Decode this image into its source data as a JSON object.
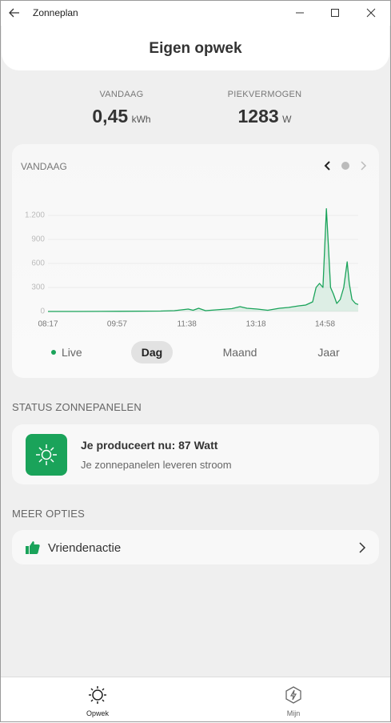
{
  "window": {
    "title": "Zonneplan"
  },
  "header": {
    "title": "Eigen opwek"
  },
  "stats": [
    {
      "label": "VANDAAG",
      "value": "0,45",
      "unit": "kWh"
    },
    {
      "label": "PIEKVERMOGEN",
      "value": "1283",
      "unit": "W"
    }
  ],
  "chart_data": {
    "type": "line",
    "title": "VANDAAG",
    "x": [
      "08:17",
      "09:00",
      "10:00",
      "11:00",
      "11:20",
      "11:30",
      "11:40",
      "11:47",
      "11:55",
      "12:05",
      "12:20",
      "12:43",
      "12:55",
      "13:05",
      "13:20",
      "13:35",
      "13:52",
      "14:05",
      "14:20",
      "14:30",
      "14:40",
      "14:45",
      "14:50",
      "14:55",
      "15:00",
      "15:03",
      "15:06",
      "15:10",
      "15:15",
      "15:20",
      "15:25",
      "15:30",
      "15:33",
      "15:37",
      "15:42",
      "15:46"
    ],
    "series": [
      {
        "name": "Opwek",
        "color": "#1aa35a",
        "values": [
          0,
          0,
          2,
          5,
          10,
          20,
          30,
          15,
          40,
          10,
          20,
          35,
          60,
          40,
          30,
          15,
          40,
          50,
          70,
          80,
          120,
          300,
          350,
          300,
          1283,
          800,
          300,
          220,
          100,
          150,
          300,
          620,
          350,
          150,
          100,
          87
        ]
      }
    ],
    "xlim": [
      "08:17",
      "15:46"
    ],
    "xticks": [
      "08:17",
      "09:57",
      "11:38",
      "13:18",
      "14:58"
    ],
    "ylim": [
      0,
      1300
    ],
    "yticks": [
      0,
      300,
      600,
      900,
      {
        "value": 1200,
        "label": "1.200"
      }
    ],
    "grid": true
  },
  "tabs": [
    "Live",
    "Dag",
    "Maand",
    "Jaar"
  ],
  "status": {
    "heading": "STATUS ZONNEPANELEN",
    "title": "Je produceert nu: 87 Watt",
    "subtitle": "Je zonnepanelen leveren stroom"
  },
  "options": {
    "heading": "MEER OPTIES",
    "items": [
      "Vriendenactie"
    ]
  },
  "nav": [
    "Opwek",
    "Mijn"
  ]
}
